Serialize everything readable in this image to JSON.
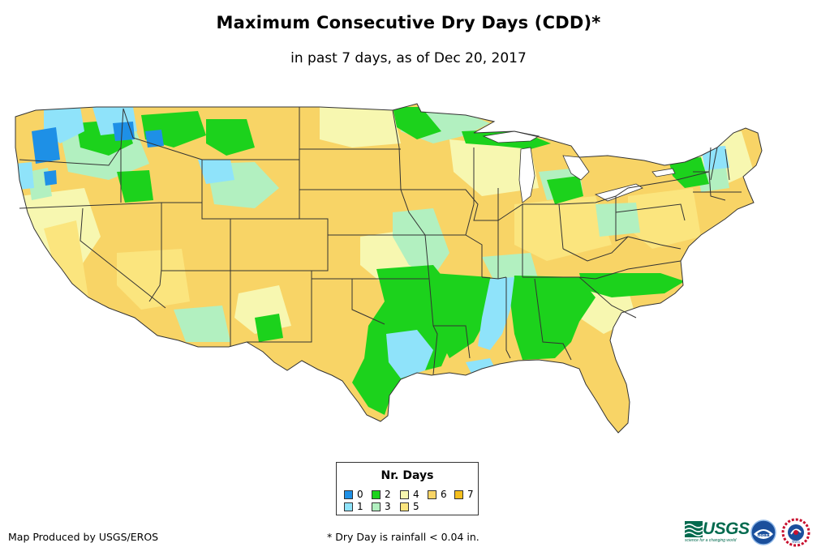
{
  "title": "Maximum Consecutive Dry Days (CDD)*",
  "subtitle": "in past 7 days, as of Dec 20, 2017",
  "legend": {
    "title": "Nr. Days",
    "items": [
      {
        "label": "0",
        "color": "#1e90e6"
      },
      {
        "label": "1",
        "color": "#8fe3fa"
      },
      {
        "label": "2",
        "color": "#1cd21c"
      },
      {
        "label": "3",
        "color": "#b2f0c0"
      },
      {
        "label": "4",
        "color": "#f7f7b0"
      },
      {
        "label": "5",
        "color": "#fbe57e"
      },
      {
        "label": "6",
        "color": "#f8d466"
      },
      {
        "label": "7",
        "color": "#f5bf1d"
      }
    ]
  },
  "credit": "Map Produced by USGS/EROS",
  "footnote": "* Dry Day is rainfall < 0.04 in.",
  "logos": {
    "usgs": "USGS",
    "usgs_tagline": "science for a changing world",
    "noaa": "noaa",
    "nws": "NWS"
  },
  "map": {
    "region": "Contiguous United States",
    "base_color": "#f8d466",
    "border_color": "#333333"
  }
}
